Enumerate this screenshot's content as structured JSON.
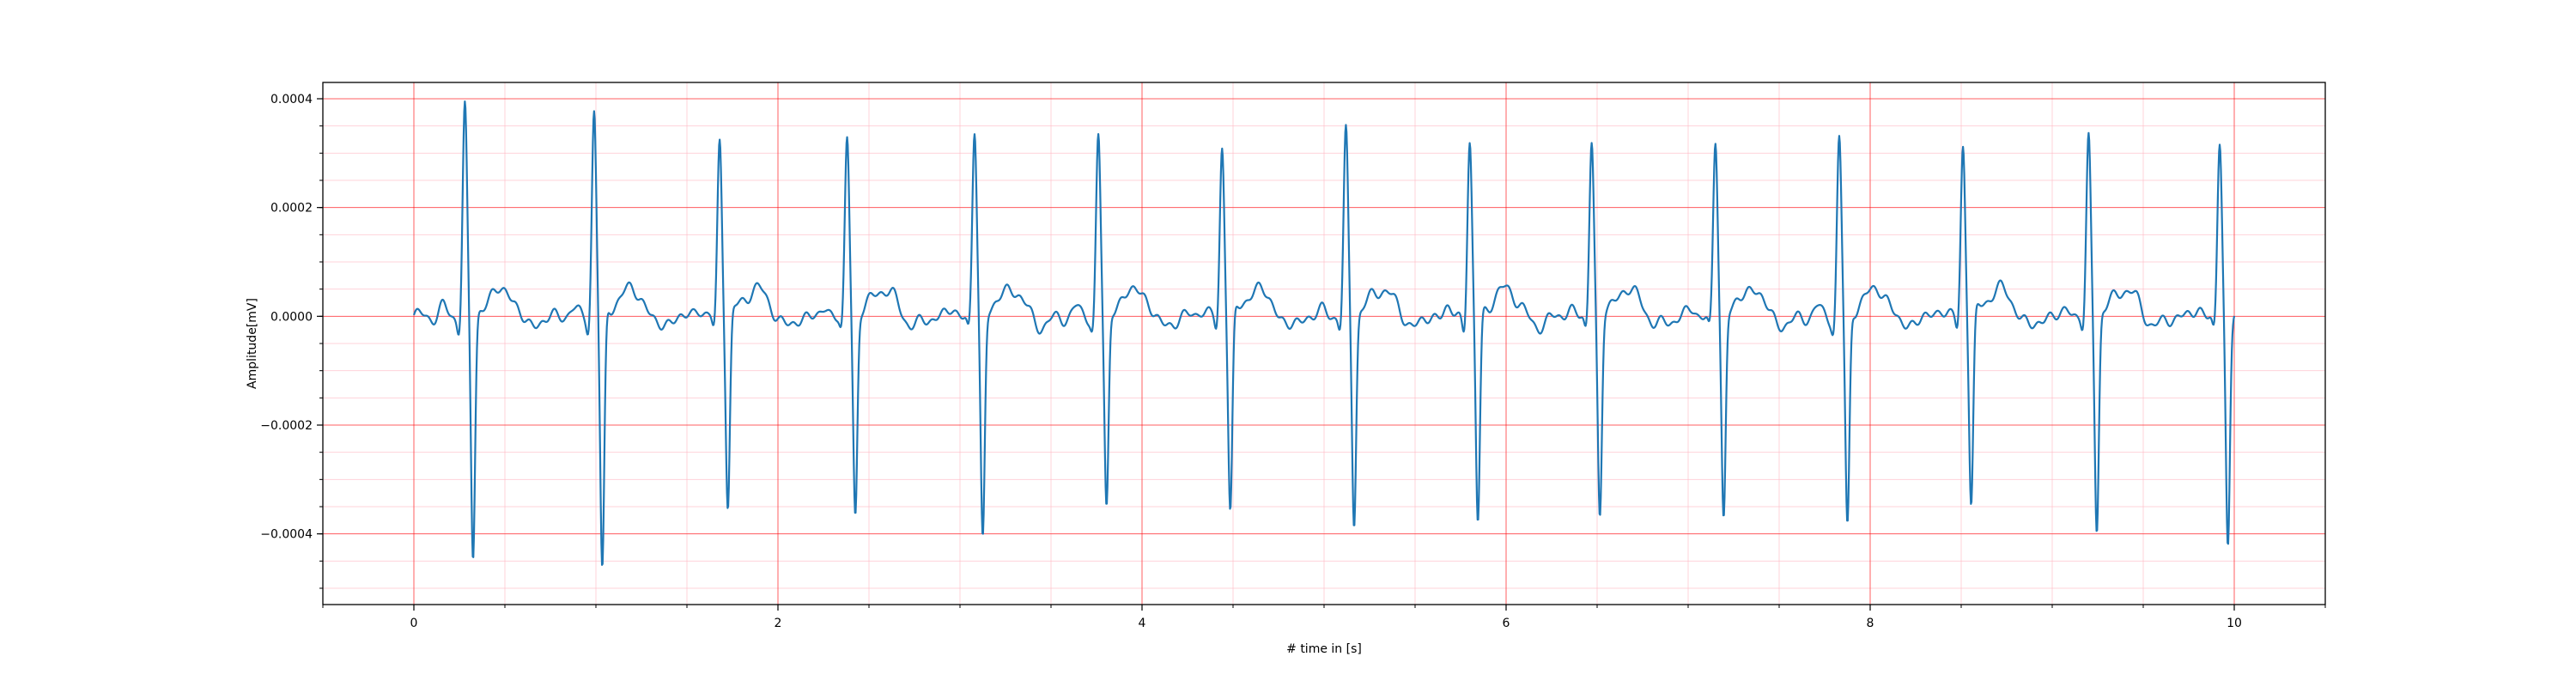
{
  "chart_data": {
    "type": "line",
    "title": "",
    "xlabel": "# time in [s]",
    "ylabel": "Amplitude[mV]",
    "xlim": [
      -0.5,
      10.5
    ],
    "ylim": [
      -0.00053,
      0.00043
    ],
    "x_ticks": [
      0,
      2,
      4,
      6,
      8,
      10
    ],
    "x_tick_labels": [
      "0",
      "2",
      "4",
      "6",
      "8",
      "10"
    ],
    "y_ticks": [
      0.0004,
      0.0002,
      0.0,
      -0.0002,
      -0.0004
    ],
    "y_tick_labels": [
      "0.0004",
      "0.0002",
      "0.0000",
      "−0.0002",
      "−0.0004"
    ],
    "x_minor_step": 0.5,
    "y_minor_step": 5e-05,
    "grid": {
      "major": true,
      "minor": true,
      "major_color": "#ff0000",
      "minor_color": "#ffb6c1"
    },
    "series": [
      {
        "color": "#1f77b4",
        "x_range": [
          0,
          10
        ],
        "beats": [
          {
            "r_time": 0.28,
            "r_peak": 0.000385,
            "s_trough": -0.00045
          },
          {
            "r_time": 0.99,
            "r_peak": 0.00038,
            "s_trough": -0.00048
          },
          {
            "r_time": 1.68,
            "r_peak": 0.000325,
            "s_trough": -0.000355
          },
          {
            "r_time": 2.38,
            "r_peak": 0.000325,
            "s_trough": -0.00037
          },
          {
            "r_time": 3.08,
            "r_peak": 0.00034,
            "s_trough": -0.000415
          },
          {
            "r_time": 3.76,
            "r_peak": 0.00033,
            "s_trough": -0.00036
          },
          {
            "r_time": 4.44,
            "r_peak": 0.000315,
            "s_trough": -0.000365
          },
          {
            "r_time": 5.12,
            "r_peak": 0.000335,
            "s_trough": -0.00038
          },
          {
            "r_time": 5.8,
            "r_peak": 0.00032,
            "s_trough": -0.000385
          },
          {
            "r_time": 6.47,
            "r_peak": 0.000325,
            "s_trough": -0.000375
          },
          {
            "r_time": 7.15,
            "r_peak": 0.00032,
            "s_trough": -0.000375
          },
          {
            "r_time": 7.83,
            "r_peak": 0.000325,
            "s_trough": -0.000395
          },
          {
            "r_time": 8.51,
            "r_peak": 0.000315,
            "s_trough": -0.00035
          },
          {
            "r_time": 9.2,
            "r_peak": 0.000325,
            "s_trough": -0.000395
          },
          {
            "r_time": 9.92,
            "r_peak": 0.00032,
            "s_trough": -0.00043
          }
        ]
      }
    ]
  }
}
